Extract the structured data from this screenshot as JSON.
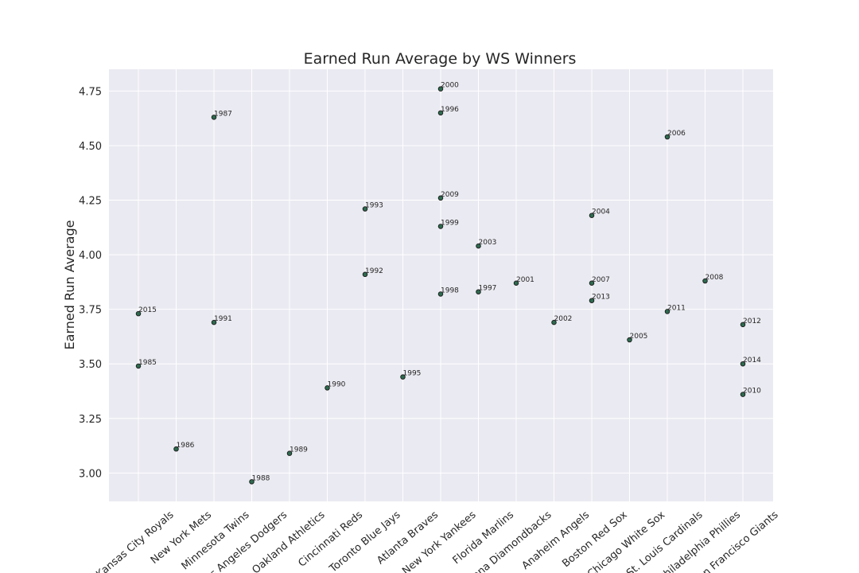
{
  "chart_data": {
    "type": "scatter",
    "title": "Earned Run Average by WS Winners",
    "xlabel": "",
    "ylabel": "Earned Run Average",
    "ylim": [
      2.87,
      4.85
    ],
    "yticks": [
      "3.00",
      "3.25",
      "3.50",
      "3.75",
      "4.00",
      "4.25",
      "4.50",
      "4.75"
    ],
    "grid": true,
    "categories": [
      "Kansas City Royals",
      "New York Mets",
      "Minnesota Twins",
      "Los Angeles Dodgers",
      "Oakland Athletics",
      "Cincinnati Reds",
      "Toronto Blue Jays",
      "Atlanta Braves",
      "New York Yankees",
      "Florida Marlins",
      "Arizona Diamondbacks",
      "Anaheim Angels",
      "Boston Red Sox",
      "Chicago White Sox",
      "St. Louis Cardinals",
      "Philadelphia Phillies",
      "San Francisco Giants"
    ],
    "points": [
      {
        "team": "Kansas City Royals",
        "year": "1985",
        "era": 3.49
      },
      {
        "team": "Kansas City Royals",
        "year": "2015",
        "era": 3.73
      },
      {
        "team": "New York Mets",
        "year": "1986",
        "era": 3.11
      },
      {
        "team": "Minnesota Twins",
        "year": "1987",
        "era": 4.63
      },
      {
        "team": "Minnesota Twins",
        "year": "1991",
        "era": 3.69
      },
      {
        "team": "Los Angeles Dodgers",
        "year": "1988",
        "era": 2.96
      },
      {
        "team": "Oakland Athletics",
        "year": "1989",
        "era": 3.09
      },
      {
        "team": "Cincinnati Reds",
        "year": "1990",
        "era": 3.39
      },
      {
        "team": "Toronto Blue Jays",
        "year": "1992",
        "era": 3.91
      },
      {
        "team": "Toronto Blue Jays",
        "year": "1993",
        "era": 4.21
      },
      {
        "team": "Atlanta Braves",
        "year": "1995",
        "era": 3.44
      },
      {
        "team": "New York Yankees",
        "year": "1996",
        "era": 4.65
      },
      {
        "team": "New York Yankees",
        "year": "1998",
        "era": 3.82
      },
      {
        "team": "New York Yankees",
        "year": "1999",
        "era": 4.13
      },
      {
        "team": "New York Yankees",
        "year": "2000",
        "era": 4.76
      },
      {
        "team": "New York Yankees",
        "year": "2009",
        "era": 4.26
      },
      {
        "team": "Florida Marlins",
        "year": "1997",
        "era": 3.83
      },
      {
        "team": "Florida Marlins",
        "year": "2003",
        "era": 4.04
      },
      {
        "team": "Arizona Diamondbacks",
        "year": "2001",
        "era": 3.87
      },
      {
        "team": "Anaheim Angels",
        "year": "2002",
        "era": 3.69
      },
      {
        "team": "Boston Red Sox",
        "year": "2004",
        "era": 4.18
      },
      {
        "team": "Boston Red Sox",
        "year": "2007",
        "era": 3.87
      },
      {
        "team": "Boston Red Sox",
        "year": "2013",
        "era": 3.79
      },
      {
        "team": "Chicago White Sox",
        "year": "2005",
        "era": 3.61
      },
      {
        "team": "St. Louis Cardinals",
        "year": "2006",
        "era": 4.54
      },
      {
        "team": "St. Louis Cardinals",
        "year": "2011",
        "era": 3.74
      },
      {
        "team": "Philadelphia Phillies",
        "year": "2008",
        "era": 3.88
      },
      {
        "team": "San Francisco Giants",
        "year": "2010",
        "era": 3.36
      },
      {
        "team": "San Francisco Giants",
        "year": "2012",
        "era": 3.68
      },
      {
        "team": "San Francisco Giants",
        "year": "2014",
        "era": 3.5
      }
    ],
    "colors": {
      "background": "#eaeaf2",
      "grid": "#ffffff",
      "marker_fill": "#2e6b4f",
      "marker_edge": "#1a1a1a",
      "text": "#262626"
    }
  }
}
